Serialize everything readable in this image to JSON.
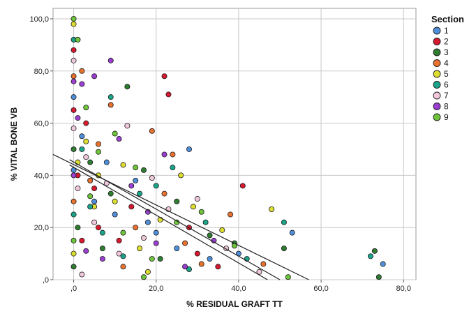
{
  "chart_data": {
    "type": "scatter",
    "xlabel": "% RESIDUAL GRAFT TT",
    "ylabel": "% VITAL BONE VB",
    "xlim": [
      -5,
      83
    ],
    "ylim": [
      0,
      104
    ],
    "x_ticks": [
      0,
      20,
      40,
      60,
      80
    ],
    "x_tick_labels": [
      ",0",
      "20,0",
      "40,0",
      "60,0",
      "80,0"
    ],
    "y_ticks": [
      0,
      20,
      40,
      60,
      80,
      100
    ],
    "y_tick_labels": [
      ",0",
      "20,0",
      "40,0",
      "60,0",
      "80,0",
      "100,0"
    ],
    "grid": true,
    "legend": {
      "title": "Section",
      "placement": "right"
    },
    "series": [
      {
        "name": "1",
        "color": "#4f8fd9",
        "points": [
          [
            0,
            42
          ],
          [
            2,
            55
          ],
          [
            5,
            30
          ],
          [
            10,
            25
          ],
          [
            15,
            38
          ],
          [
            20,
            18
          ],
          [
            25,
            12
          ],
          [
            28,
            50
          ],
          [
            33,
            8
          ],
          [
            40,
            10
          ],
          [
            53,
            18
          ],
          [
            75,
            6
          ],
          [
            0,
            70
          ],
          [
            8,
            45
          ],
          [
            18,
            22
          ]
        ]
      },
      {
        "name": "2",
        "color": "#d7192f",
        "points": [
          [
            0,
            88
          ],
          [
            1,
            40
          ],
          [
            3,
            60
          ],
          [
            6,
            20
          ],
          [
            11,
            15
          ],
          [
            22,
            78
          ],
          [
            23,
            71
          ],
          [
            28,
            20
          ],
          [
            35,
            5
          ],
          [
            41,
            36
          ],
          [
            0,
            65
          ],
          [
            5,
            35
          ],
          [
            14,
            28
          ],
          [
            30,
            10
          ],
          [
            2,
            15
          ]
        ]
      },
      {
        "name": "3",
        "color": "#2e7d32",
        "points": [
          [
            0,
            50
          ],
          [
            1,
            20
          ],
          [
            4,
            45
          ],
          [
            7,
            12
          ],
          [
            13,
            74
          ],
          [
            17,
            42
          ],
          [
            25,
            30
          ],
          [
            33,
            17
          ],
          [
            39,
            14
          ],
          [
            51,
            12
          ],
          [
            73,
            11
          ],
          [
            74,
            1
          ],
          [
            0,
            5
          ],
          [
            9,
            33
          ],
          [
            21,
            8
          ]
        ]
      },
      {
        "name": "4",
        "color": "#e8722e",
        "points": [
          [
            0,
            78
          ],
          [
            2,
            80
          ],
          [
            4,
            38
          ],
          [
            9,
            67
          ],
          [
            19,
            57
          ],
          [
            22,
            33
          ],
          [
            27,
            14
          ],
          [
            31,
            6
          ],
          [
            38,
            25
          ],
          [
            46,
            6
          ],
          [
            0,
            30
          ],
          [
            6,
            52
          ],
          [
            15,
            20
          ],
          [
            24,
            48
          ],
          [
            12,
            5
          ]
        ]
      },
      {
        "name": "5",
        "color": "#dede30",
        "points": [
          [
            0,
            98
          ],
          [
            1,
            45
          ],
          [
            3,
            53
          ],
          [
            6,
            40
          ],
          [
            10,
            30
          ],
          [
            16,
            12
          ],
          [
            21,
            23
          ],
          [
            29,
            28
          ],
          [
            36,
            19
          ],
          [
            48,
            27
          ],
          [
            0,
            10
          ],
          [
            5,
            28
          ],
          [
            12,
            44
          ],
          [
            26,
            40
          ],
          [
            18,
            3
          ]
        ]
      },
      {
        "name": "6",
        "color": "#1aa58a",
        "points": [
          [
            0,
            92
          ],
          [
            2,
            50
          ],
          [
            4,
            28
          ],
          [
            9,
            70
          ],
          [
            12,
            9
          ],
          [
            20,
            36
          ],
          [
            24,
            43
          ],
          [
            32,
            22
          ],
          [
            42,
            8
          ],
          [
            51,
            22
          ],
          [
            72,
            9
          ],
          [
            0,
            25
          ],
          [
            7,
            18
          ],
          [
            16,
            33
          ],
          [
            28,
            4
          ]
        ]
      },
      {
        "name": "7",
        "color": "#f2c8dc",
        "points": [
          [
            0,
            84
          ],
          [
            1,
            35
          ],
          [
            3,
            47
          ],
          [
            8,
            37
          ],
          [
            13,
            59
          ],
          [
            17,
            16
          ],
          [
            23,
            27
          ],
          [
            30,
            31
          ],
          [
            37,
            12
          ],
          [
            45,
            3
          ],
          [
            0,
            58
          ],
          [
            5,
            22
          ],
          [
            11,
            10
          ],
          [
            19,
            39
          ],
          [
            2,
            2
          ]
        ]
      },
      {
        "name": "8",
        "color": "#9a3fd1",
        "points": [
          [
            0,
            76
          ],
          [
            2,
            75
          ],
          [
            5,
            78
          ],
          [
            9,
            84
          ],
          [
            11,
            54
          ],
          [
            18,
            26
          ],
          [
            22,
            48
          ],
          [
            27,
            5
          ],
          [
            34,
            15
          ],
          [
            3,
            11
          ],
          [
            0,
            40
          ],
          [
            7,
            8
          ],
          [
            14,
            36
          ],
          [
            20,
            14
          ],
          [
            1,
            62
          ]
        ]
      },
      {
        "name": "9",
        "color": "#6ec43a",
        "points": [
          [
            0,
            100
          ],
          [
            1,
            92
          ],
          [
            3,
            66
          ],
          [
            6,
            49
          ],
          [
            10,
            56
          ],
          [
            15,
            43
          ],
          [
            19,
            8
          ],
          [
            25,
            22
          ],
          [
            31,
            26
          ],
          [
            39,
            13
          ],
          [
            52,
            1
          ],
          [
            0,
            15
          ],
          [
            4,
            32
          ],
          [
            12,
            18
          ],
          [
            17,
            1
          ]
        ]
      }
    ],
    "fit_lines": [
      {
        "x": [
          -5,
          57
        ],
        "y": [
          48,
          0
        ]
      },
      {
        "x": [
          -1,
          50
        ],
        "y": [
          46,
          0
        ]
      },
      {
        "x": [
          -1,
          47
        ],
        "y": [
          44,
          0
        ]
      }
    ]
  }
}
